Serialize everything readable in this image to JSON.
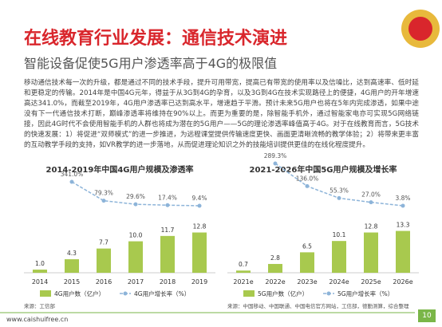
{
  "title": "在线教育行业发展：通信技术演进",
  "subtitle": "智能设备促使5G用户渗透率高于4G的极限值",
  "body": "移动通信技术每一次的升级，都是通过不同的技术手段，提升可用带宽，提高已有带宽的使用率以及信噪比，达到高速率、低时延和更稳定的传输。2014年是中国4G元年，得益于从3G到4G的孕育，以及3G到4G在技术实现路径上的便捷，4G用户的开年增速高达341.0%，而截至2019年，4G用户渗透率已达到高水平，增速趋于平滑。预计未来5G用户也将在5年内完成渗透，如果中途没有下一代通信技术打断，巅峰渗透率将维持在90%以上。而更为重要的是，除智能手机外，通过智能家电亦可实现5G网络链接，因此4G时代不会使用智能手机的人群也将成为潜在的5G用户——5G的理论渗透率峰值高于4G。对于在线教育而言，5G技术的快速发展：1）将促进“双师模式”的进一步推进，为远程课堂提供传输速度更快、画面更清晰流畅的教学体验；2）将带来更丰富的互动教学手段的支持，如VR教学的进一步落地，从而促进理论知识之外的技能培训提供更佳的在线化程度提升。",
  "footer": "www.caishuifree.cn",
  "page": "10",
  "chart_data": [
    {
      "type": "bar_line",
      "title": "2014-2019年中国4G用户规模及渗透率",
      "categories": [
        "2014",
        "2015",
        "2016",
        "2017",
        "2018",
        "2019"
      ],
      "series": [
        {
          "name": "4G用户数（亿户）",
          "color": "#a8c94e",
          "values": [
            1.0,
            4.3,
            7.7,
            10.0,
            11.7,
            12.8
          ],
          "value_labels": [
            "1.0",
            "4.3",
            "7.7",
            "10.0",
            "11.7",
            "12.8"
          ]
        },
        {
          "name": "4G用户增长率（%）",
          "color": "#8db4d9",
          "axis": "y2",
          "values": [
            null,
            341.0,
            79.3,
            29.6,
            17.4,
            9.4
          ],
          "value_labels": [
            null,
            "341.0%",
            "79.3%",
            "29.6%",
            "17.4%",
            "9.4%"
          ]
        }
      ],
      "ylim": [
        0,
        36
      ],
      "y2lim": [
        -919,
        650
      ],
      "source": "来源：工信部"
    },
    {
      "type": "bar_line",
      "title": "2021-2026年中国5G用户规模及增长率",
      "categories": [
        "2021e",
        "2022e",
        "2023e",
        "2024e",
        "2025e",
        "2026e"
      ],
      "series": [
        {
          "name": "5G用户数（亿户）",
          "color": "#a8c94e",
          "values": [
            0.7,
            2.8,
            6.5,
            10.1,
            12.8,
            13.3
          ]
        },
        {
          "name": "5G用户增长率（%）",
          "color": "#8db4d9",
          "axis": "y2",
          "values": [
            null,
            289.3,
            136.0,
            55.3,
            27.0,
            3.8
          ],
          "value_labels": [
            null,
            "289.3%",
            "136.0%",
            "55.3%",
            "27.0%",
            "3.8%"
          ]
        }
      ],
      "ylim": [
        0,
        36
      ],
      "y2lim": [
        -449,
        316
      ],
      "source": "来源：中国移动、中国联通、中国电信官方网站，工信部，德勤测算，综合整理"
    }
  ]
}
